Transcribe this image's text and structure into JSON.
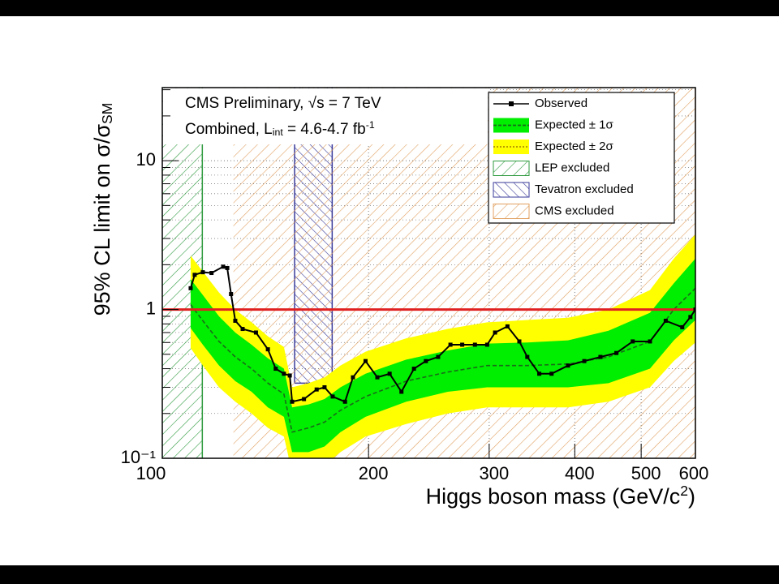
{
  "chart_data": {
    "type": "line",
    "annotations": [
      [
        {
          "text": "CMS Preliminary, √s = 7 TeV"
        }
      ],
      [
        {
          "text": "Combined, L"
        },
        {
          "sub": "int"
        },
        {
          "text": " = 4.6-4.7 fb"
        },
        {
          "sup": "-1"
        }
      ]
    ],
    "xlabel": [
      {
        "text": "Higgs boson mass (GeV/c"
      },
      {
        "sup": "2"
      },
      {
        "text": ")"
      }
    ],
    "ylabel": [
      {
        "text": "95% CL limit on σ/σ"
      },
      {
        "sub": "SM"
      }
    ],
    "xscale": "log",
    "yscale": "log",
    "xlim": [
      100,
      600
    ],
    "ylim": [
      0.1,
      31
    ],
    "xticks": [
      100,
      200,
      300,
      400,
      500,
      600
    ],
    "yticks": [
      {
        "value": 0.1,
        "label": "10⁻¹"
      },
      1,
      10
    ],
    "yminor": [
      0.2,
      0.3,
      0.4,
      0.5,
      0.6,
      0.7,
      0.8,
      0.9,
      2,
      3,
      4,
      5,
      6,
      7,
      8,
      9,
      20,
      30
    ],
    "grid": true,
    "legend": "upper right",
    "hline": {
      "value": 1,
      "color": "#e02020"
    },
    "series": [
      {
        "name": "Observed",
        "color": "#000000",
        "x": [
          110,
          111.5,
          114.6,
          118,
          122.7,
          124.4,
          126,
          127.8,
          131,
          137,
          142.6,
          146.4,
          150.5,
          153.5,
          154.7,
          161,
          168,
          172.5,
          177.3,
          184.8,
          189.8,
          198,
          206,
          214.7,
          223.4,
          233,
          242.5,
          252.7,
          263.4,
          274,
          286,
          298,
          306,
          319,
          332,
          341,
          355,
          370,
          391,
          413,
          436,
          460,
          486,
          515,
          543,
          574,
          590,
          600
        ],
        "values": [
          1.39,
          1.71,
          1.78,
          1.76,
          1.94,
          1.9,
          1.27,
          0.84,
          0.74,
          0.7,
          0.54,
          0.4,
          0.37,
          0.36,
          0.24,
          0.25,
          0.29,
          0.3,
          0.26,
          0.24,
          0.35,
          0.45,
          0.35,
          0.37,
          0.28,
          0.4,
          0.45,
          0.48,
          0.58,
          0.58,
          0.58,
          0.58,
          0.7,
          0.77,
          0.61,
          0.48,
          0.37,
          0.37,
          0.42,
          0.45,
          0.48,
          0.51,
          0.61,
          0.61,
          0.84,
          0.76,
          0.89,
          1.0
        ]
      }
    ],
    "x_expected": [
      110,
      114.6,
      121,
      127.8,
      135,
      142.6,
      150.5,
      154.7,
      163.5,
      172.5,
      182,
      198,
      227,
      261,
      298,
      341,
      391,
      448,
      515,
      558,
      600
    ],
    "expected": {
      "color": "#1a6a1a",
      "values": [
        1.08,
        0.84,
        0.61,
        0.48,
        0.4,
        0.32,
        0.27,
        0.15,
        0.16,
        0.175,
        0.21,
        0.26,
        0.33,
        0.38,
        0.42,
        0.42,
        0.43,
        0.48,
        0.61,
        1.0,
        1.39
      ]
    },
    "bands": [
      {
        "name": "Expected ± 2σ",
        "color": "#ffff00",
        "line": "#b09000",
        "upper": [
          2.3,
          1.8,
          1.3,
          1.0,
          0.82,
          0.66,
          0.56,
          0.3,
          0.32,
          0.35,
          0.42,
          0.52,
          0.64,
          0.74,
          0.82,
          0.85,
          0.88,
          1.0,
          1.35,
          2.2,
          3.2
        ],
        "lower": [
          0.55,
          0.42,
          0.3,
          0.24,
          0.2,
          0.16,
          0.14,
          0.08,
          0.085,
          0.09,
          0.11,
          0.14,
          0.17,
          0.2,
          0.22,
          0.22,
          0.22,
          0.24,
          0.3,
          0.45,
          0.6
        ]
      },
      {
        "name": "Expected ± 1σ",
        "color": "#00ee00",
        "line": "#1a6a1a",
        "upper": [
          1.6,
          1.25,
          0.9,
          0.7,
          0.58,
          0.47,
          0.4,
          0.22,
          0.23,
          0.25,
          0.3,
          0.37,
          0.46,
          0.53,
          0.59,
          0.6,
          0.62,
          0.72,
          0.95,
          1.5,
          2.2
        ],
        "lower": [
          0.75,
          0.58,
          0.42,
          0.33,
          0.28,
          0.22,
          0.19,
          0.11,
          0.11,
          0.12,
          0.15,
          0.19,
          0.24,
          0.28,
          0.3,
          0.3,
          0.3,
          0.32,
          0.4,
          0.62,
          0.85
        ]
      }
    ],
    "regions": [
      {
        "name": "LEP excluded",
        "color": "#2e9a3e",
        "range": [
          100,
          114.4
        ]
      },
      {
        "name": "Tevatron excluded",
        "color": "#3a3a9a",
        "range": [
          156,
          177
        ],
        "ymin": 0.32
      },
      {
        "name": "CMS excluded",
        "color": "#e0a060",
        "range": [
          127,
          600
        ]
      }
    ]
  }
}
